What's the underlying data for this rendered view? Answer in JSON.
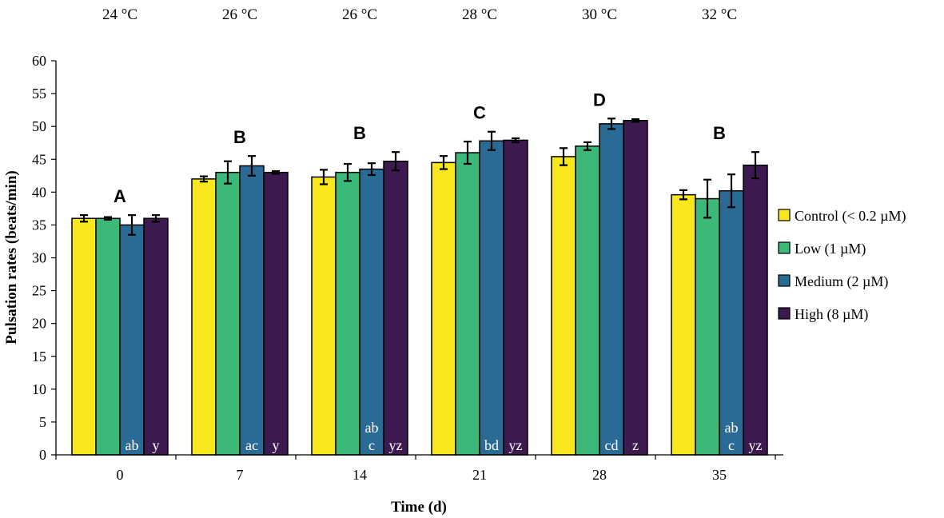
{
  "chart_data": {
    "type": "bar",
    "title": "",
    "xlabel": "Time (d)",
    "ylabel": "Pulsation rates (beats/min)",
    "ylim": [
      0,
      60
    ],
    "yticks": [
      0,
      5,
      10,
      15,
      20,
      25,
      30,
      35,
      40,
      45,
      50,
      55,
      60
    ],
    "categories": [
      "0",
      "7",
      "14",
      "21",
      "28",
      "35"
    ],
    "temperatures": [
      "24 °C",
      "26 °C",
      "26 °C",
      "28 °C",
      "30 °C",
      "32 °C"
    ],
    "group_letters": [
      "A",
      "B",
      "B",
      "C",
      "D",
      "B"
    ],
    "series": [
      {
        "name": "Control (< 0.2 µM)",
        "color": "#f8e71c",
        "values": [
          36.0,
          42.0,
          42.3,
          44.5,
          45.4,
          39.6
        ],
        "errors": [
          0.5,
          0.4,
          1.1,
          1.0,
          1.3,
          0.7
        ],
        "bar_labels": [
          "",
          "",
          "",
          "",
          "",
          ""
        ]
      },
      {
        "name": "Low (1 µM)",
        "color": "#3cb878",
        "values": [
          36.0,
          43.0,
          43.0,
          46.0,
          47.0,
          39.0
        ],
        "errors": [
          0.2,
          1.7,
          1.3,
          1.7,
          0.6,
          2.9
        ],
        "bar_labels": [
          "",
          "",
          "",
          "",
          "",
          ""
        ]
      },
      {
        "name": "Medium (2 µM)",
        "color": "#2a6b95",
        "values": [
          35.0,
          44.0,
          43.5,
          47.8,
          50.4,
          40.2
        ],
        "errors": [
          1.5,
          1.5,
          0.9,
          1.4,
          0.8,
          2.5
        ],
        "bar_labels": [
          "ab",
          "ac",
          "ab\nc",
          "bd",
          "cd",
          "ab\nc"
        ]
      },
      {
        "name": "High (8 µM)",
        "color": "#3c1a4f",
        "values": [
          36.0,
          43.0,
          44.7,
          47.9,
          50.9,
          44.1
        ],
        "errors": [
          0.5,
          0.2,
          1.4,
          0.3,
          0.2,
          2.0
        ],
        "bar_labels": [
          "y",
          "y",
          "yz",
          "yz",
          "z",
          "yz"
        ]
      }
    ],
    "legend_position": "right",
    "grid": false
  }
}
